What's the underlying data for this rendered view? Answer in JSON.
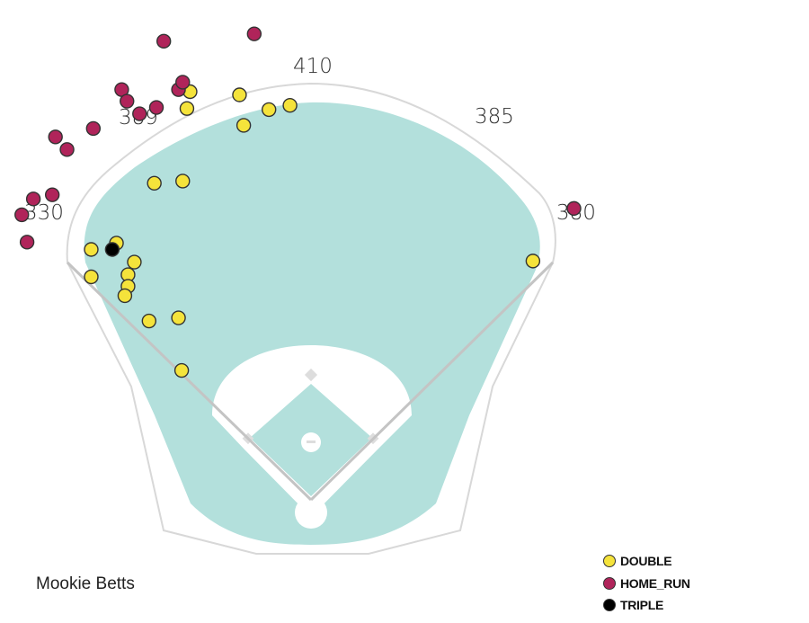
{
  "chart_data": {
    "type": "scatter",
    "title": "",
    "player": "Mookie Betts",
    "units": "feet from home plate (x: toward right field, y: toward center field)",
    "fence_distances": [
      "330",
      "389",
      "410",
      "385",
      "380"
    ],
    "legend_placement": "bottom-right",
    "colors": {
      "grass": "#b3e0dc",
      "fence": "#d8d8d8",
      "foul_line": "#c4c4c4"
    },
    "series": [
      {
        "name": "DOUBLE",
        "color": "#f5e33b",
        "points": [
          [
            -115,
            400
          ],
          [
            -118,
            384
          ],
          [
            -68,
            397
          ],
          [
            -64,
            368
          ],
          [
            -40,
            383
          ],
          [
            -20,
            387
          ],
          [
            -149,
            313
          ],
          [
            -122,
            315
          ],
          [
            -209,
            250
          ],
          [
            -185,
            256
          ],
          [
            -168,
            238
          ],
          [
            -174,
            226
          ],
          [
            -174,
            215
          ],
          [
            -177,
            206
          ],
          [
            -209,
            224
          ],
          [
            -154,
            182
          ],
          [
            -126,
            185
          ],
          [
            -123,
            135
          ],
          [
            211,
            239
          ]
        ]
      },
      {
        "name": "HOME_RUN",
        "color": "#b0245a",
        "points": [
          [
            -140,
            448
          ],
          [
            -54,
            455
          ],
          [
            -180,
            402
          ],
          [
            -175,
            391
          ],
          [
            -163,
            379
          ],
          [
            -147,
            385
          ],
          [
            -126,
            402
          ],
          [
            -122,
            409
          ],
          [
            -207,
            365
          ],
          [
            -243,
            357
          ],
          [
            -232,
            345
          ],
          [
            -264,
            298
          ],
          [
            -246,
            302
          ],
          [
            -275,
            283
          ],
          [
            -270,
            257
          ],
          [
            250,
            289
          ]
        ]
      },
      {
        "name": "TRIPLE",
        "color": "#000000",
        "points": [
          [
            -189,
            250
          ]
        ]
      }
    ]
  }
}
